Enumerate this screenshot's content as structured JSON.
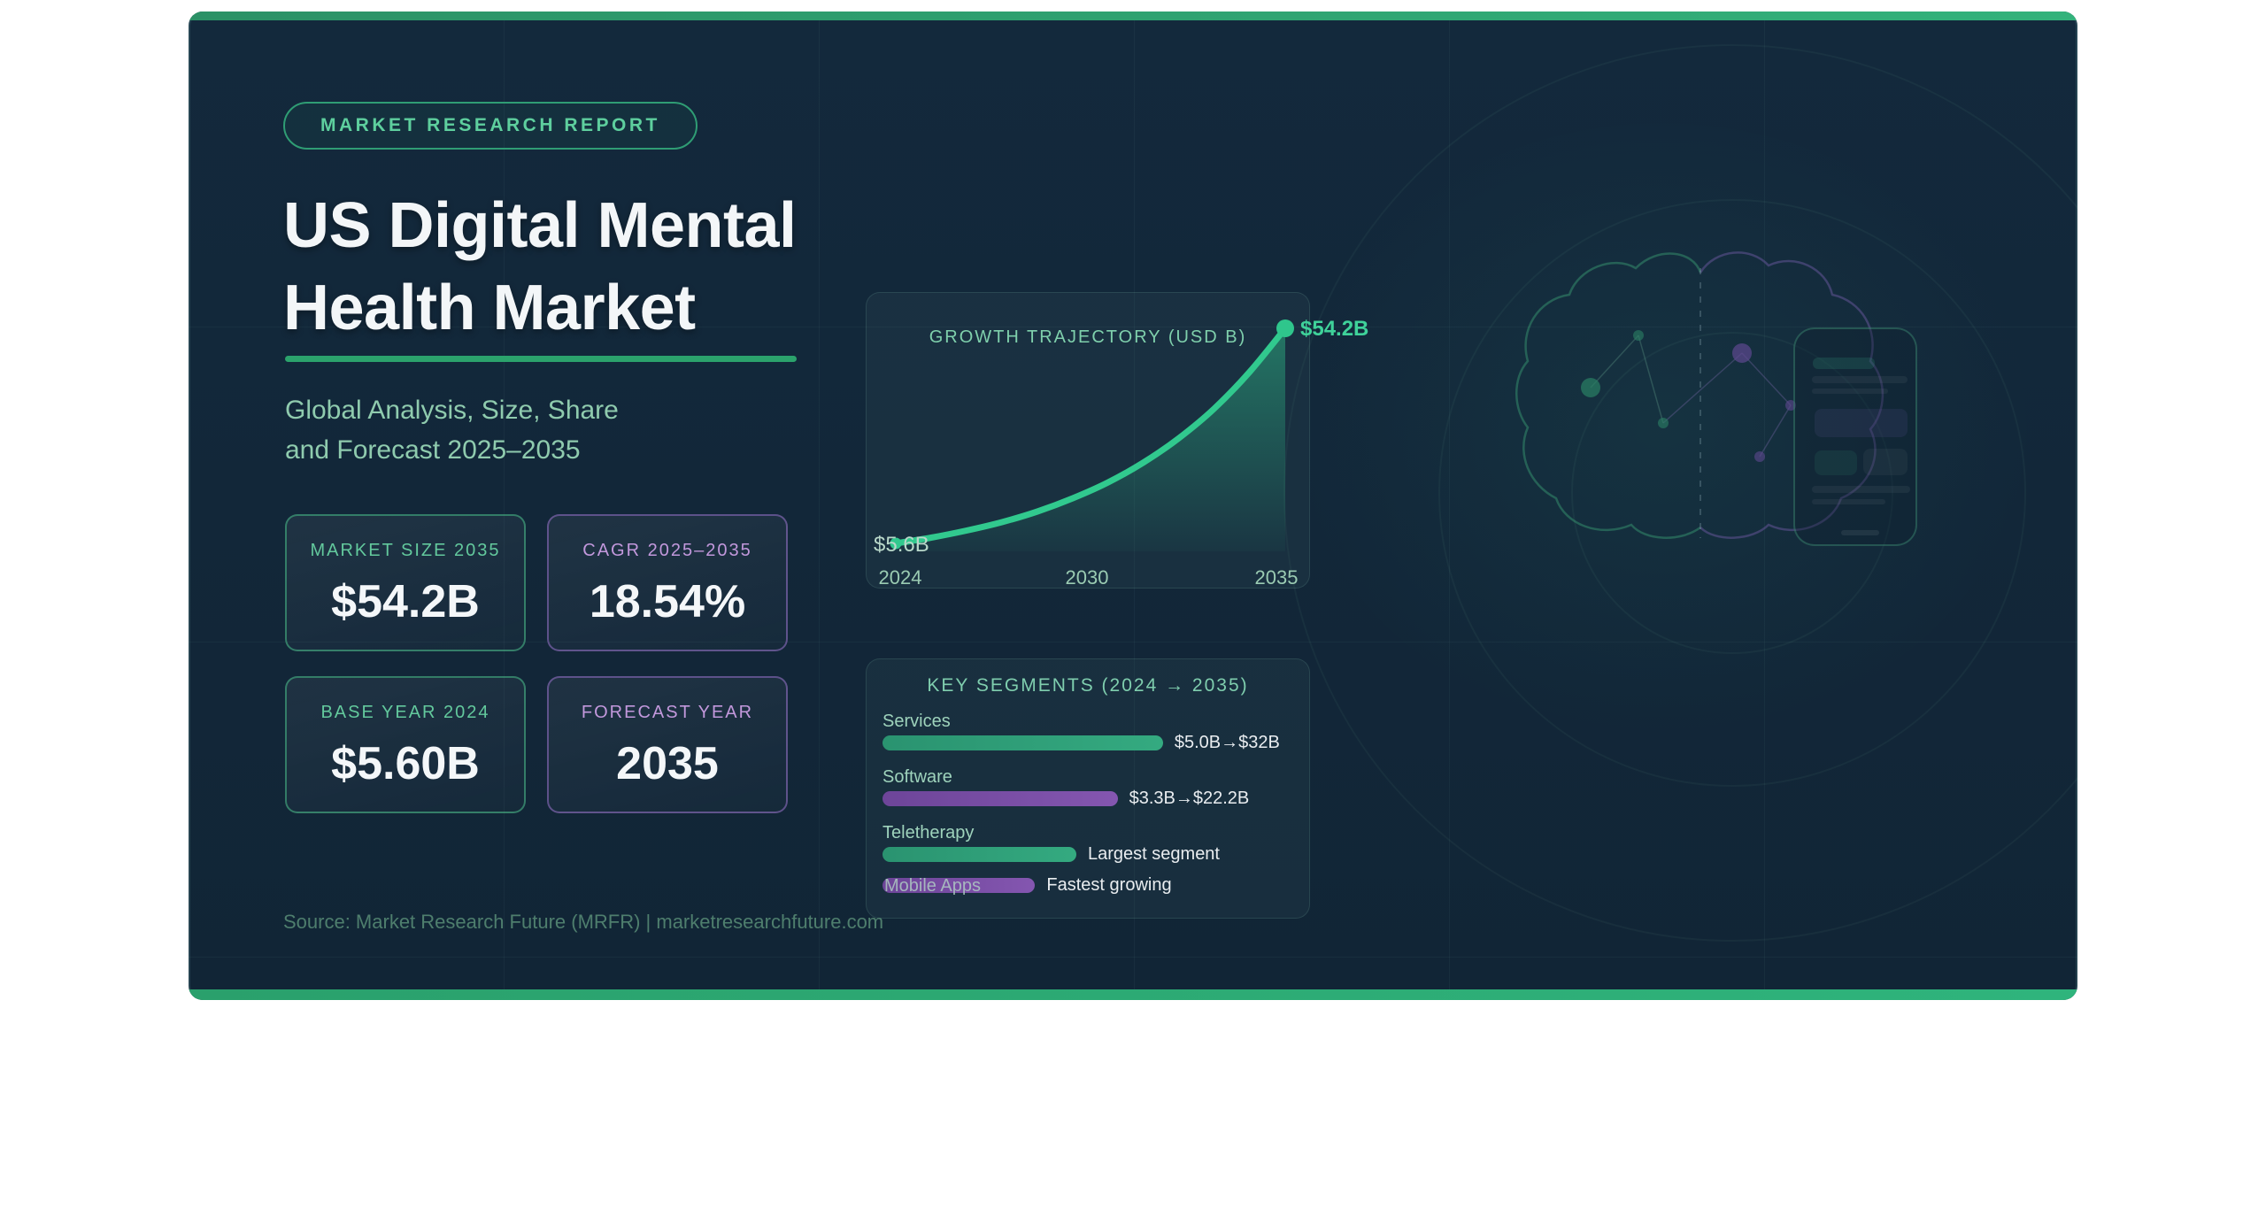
{
  "badge": {
    "label": "MARKET RESEARCH REPORT"
  },
  "header": {
    "title_line1": "US Digital Mental",
    "title_line2": "Health Market",
    "subtitle_line1": "Global Analysis, Size, Share",
    "subtitle_line2": "and Forecast 2025–2035"
  },
  "stats": [
    {
      "label": "MARKET SIZE 2035",
      "value": "$54.2B",
      "accent": "green"
    },
    {
      "label": "CAGR 2025–2035",
      "value": "18.54%",
      "accent": "purple"
    },
    {
      "label": "BASE YEAR 2024",
      "value": "$5.60B",
      "accent": "green"
    },
    {
      "label": "FORECAST YEAR",
      "value": "2035",
      "accent": "purple"
    }
  ],
  "chart_data": [
    {
      "type": "area",
      "title": "GROWTH TRAJECTORY (USD B)",
      "xlabel": "",
      "ylabel": "",
      "x_ticks": [
        "2024",
        "2030",
        "2035"
      ],
      "x_range": [
        2024,
        2035
      ],
      "ylim_usd_b": [
        5.6,
        54.2
      ],
      "grid": false,
      "line_color": "#31c98e",
      "points": [
        {
          "year": 2024,
          "value_usd_b": 5.6,
          "label": "$5.6B"
        },
        {
          "year": 2035,
          "value_usd_b": 54.2,
          "label": "$54.2B"
        }
      ],
      "curve_years": [
        2024,
        2025,
        2026,
        2027,
        2028,
        2029,
        2030,
        2031,
        2032,
        2033,
        2034,
        2035
      ],
      "curve_values_usd_b": [
        5.6,
        6.9,
        8.5,
        10.4,
        12.8,
        15.8,
        19.4,
        23.9,
        29.4,
        36.1,
        44.4,
        54.2
      ]
    },
    {
      "type": "bar",
      "orientation": "horizontal",
      "title": "KEY SEGMENTS (2024 → 2035)",
      "rows": [
        {
          "label": "Services",
          "value_text": "$5.0B→$32B",
          "value_2024_usd_b": 5.0,
          "value_2035_usd_b": 32.0,
          "bar_pct": 68,
          "color": "green",
          "label_overlaps_bar": false
        },
        {
          "label": "Software",
          "value_text": "$3.3B→$22.2B",
          "value_2024_usd_b": 3.3,
          "value_2035_usd_b": 22.2,
          "bar_pct": 57,
          "color": "purple",
          "label_overlaps_bar": false
        },
        {
          "label": "Teletherapy",
          "value_text": "Largest segment",
          "bar_pct": 47,
          "color": "green",
          "label_overlaps_bar": false
        },
        {
          "label": "Mobile Apps",
          "value_text": "Fastest growing",
          "bar_pct": 37,
          "color": "purple",
          "label_overlaps_bar": true
        }
      ]
    }
  ],
  "source": {
    "text": "Source: Market Research Future (MRFR) | marketresearchfuture.com"
  },
  "colors": {
    "accent_green": "#31c98e",
    "accent_purple": "#7e4fa8",
    "card_bg": "#12273a",
    "strip_green": "#2fa974",
    "mint_text": "#8fcbae",
    "white_text": "#f3f6f8"
  }
}
